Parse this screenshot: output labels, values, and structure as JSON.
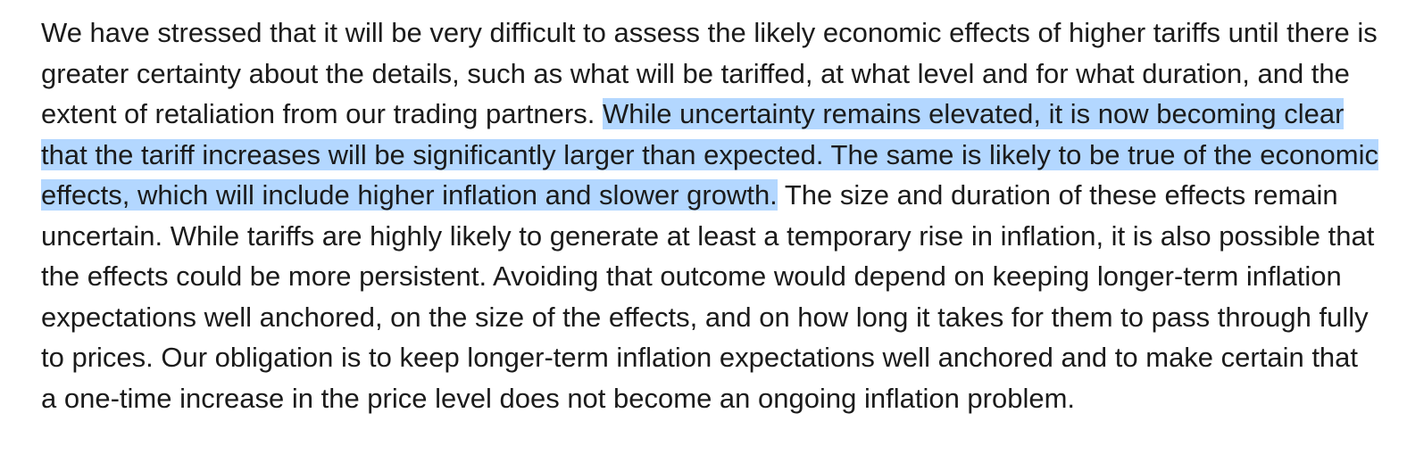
{
  "document": {
    "paragraph": {
      "before_selection": "We have stressed that it will be very difficult to assess the likely economic effects of higher tariffs until there is greater certainty about the details, such as what will be tariffed, at what level and for what duration, and the extent of retaliation from our trading partners. ",
      "selected_text": "While uncertainty remains elevated, it is now becoming clear that the tariff increases will be significantly larger than expected. The same is likely to be true of the economic effects, which will include higher inflation and slower growth.",
      "after_selection": " The size and duration of these effects remain uncertain. While tariffs are highly likely to generate at least a temporary rise in inflation, it is also possible that the effects could be more persistent. Avoiding that outcome would depend on keeping longer-term inflation expectations well anchored, on the size of the effects, and on how long it takes for them to pass through fully to prices. Our obligation is to keep longer-term inflation expectations well anchored and to make certain that a one-time increase in the price level does not become an ongoing inflation problem."
    },
    "selection_color": "#b3d7ff",
    "text_color": "#1b1b1b"
  }
}
